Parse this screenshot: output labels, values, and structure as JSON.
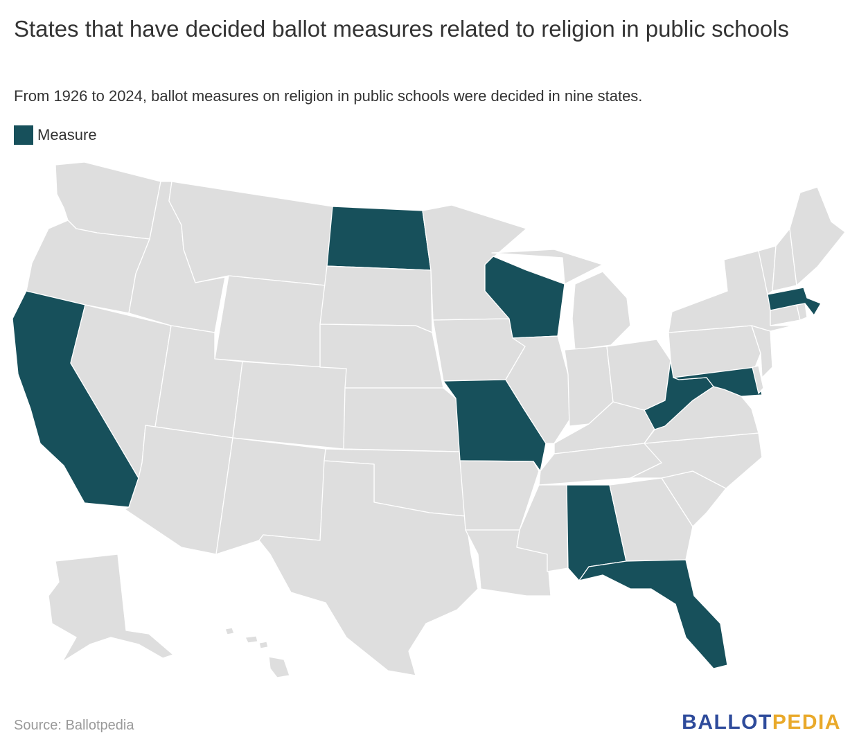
{
  "title": "States that have decided ballot measures related to religion in public schools",
  "subtitle": "From 1926 to 2024, ballot measures on religion in public schools were decided in nine states.",
  "legend": {
    "label": "Measure",
    "color": "#17505b"
  },
  "colors": {
    "highlight": "#17505b",
    "base": "#dedede",
    "border": "#ffffff"
  },
  "map": {
    "region": "United States",
    "highlighted_states": [
      "California",
      "North Dakota",
      "Wisconsin",
      "Missouri",
      "Alabama",
      "Florida",
      "West Virginia",
      "Maryland",
      "Massachusetts"
    ]
  },
  "footer": {
    "source": "Source: Ballotpedia",
    "logo": {
      "text_a": "BALLOT",
      "text_b": "PEDIA",
      "color_a": "#2e4b9b",
      "color_b": "#e9a92a"
    }
  }
}
